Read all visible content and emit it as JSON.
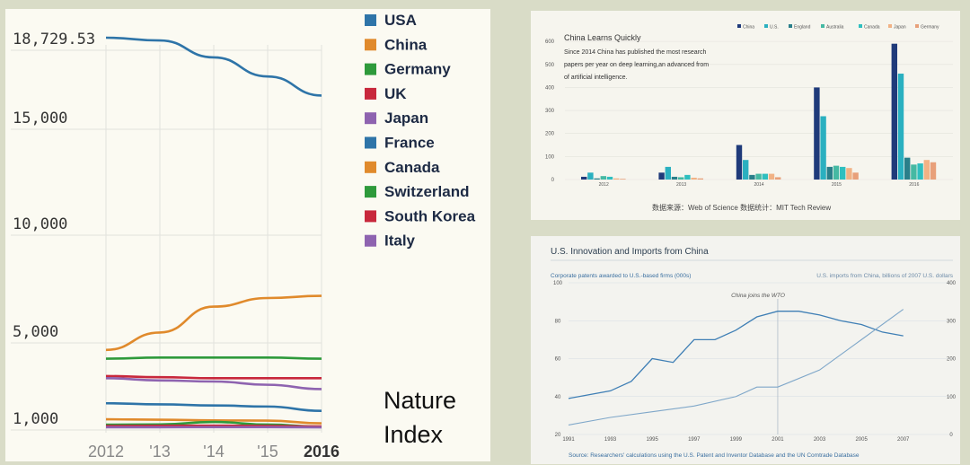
{
  "chart_data": [
    {
      "type": "line",
      "x": [
        "2012",
        "'13",
        "'14",
        "'15",
        "2016"
      ],
      "y_ticks": [
        "18,729.53",
        "15,000",
        "10,000",
        "5,000",
        "1,000"
      ],
      "y_tick_values": [
        18729.53,
        15000,
        10000,
        5000,
        1000
      ],
      "ylim": [
        0,
        19500
      ],
      "grid": true,
      "legend_position": "right",
      "series": [
        {
          "name": "USA",
          "color": "#2e74a8",
          "values": [
            18729.53,
            18600,
            17800,
            16900,
            16000
          ]
        },
        {
          "name": "China",
          "color": "#e08a2c",
          "values": [
            4100,
            4900,
            6100,
            6500,
            6600
          ]
        },
        {
          "name": "Germany",
          "color": "#2e9a3b",
          "values": [
            3700,
            3750,
            3750,
            3750,
            3700
          ]
        },
        {
          "name": "UK",
          "color": "#c8283c",
          "values": [
            2900,
            2850,
            2800,
            2800,
            2800
          ]
        },
        {
          "name": "Japan",
          "color": "#8e63b0",
          "values": [
            2800,
            2700,
            2650,
            2500,
            2300
          ]
        },
        {
          "name": "France",
          "color": "#2e74a8",
          "values": [
            1650,
            1600,
            1550,
            1500,
            1300
          ]
        },
        {
          "name": "Canada",
          "color": "#e08a2c",
          "values": [
            860,
            830,
            780,
            760,
            560
          ]
        },
        {
          "name": "Switzerland",
          "color": "#2e9a3b",
          "values": [
            460,
            480,
            660,
            470,
            310
          ]
        },
        {
          "name": "South Korea",
          "color": "#c8283c",
          "values": [
            360,
            380,
            390,
            370,
            330
          ]
        },
        {
          "name": "Italy",
          "color": "#8e63b0",
          "values": [
            270,
            270,
            280,
            280,
            260
          ]
        }
      ],
      "annotation": "Nature\nIndex"
    },
    {
      "type": "bar",
      "title": "China Learns Quickly",
      "subtitle_lines": [
        "Since 2014 China has published the most research",
        "papers per year on deep learning,an advanced from",
        "of artificial intelligence."
      ],
      "categories": [
        "2012",
        "2013",
        "2014",
        "2015",
        "2016"
      ],
      "y_ticks": [
        "0",
        "100",
        "200",
        "300",
        "400",
        "500",
        "600"
      ],
      "ylim": [
        0,
        620
      ],
      "legend_position": "top-right",
      "series": [
        {
          "name": "China",
          "color": "#1f3a7a",
          "values": [
            12,
            30,
            150,
            400,
            590
          ]
        },
        {
          "name": "U.S.",
          "color": "#2ab0c0",
          "values": [
            30,
            55,
            85,
            275,
            460
          ]
        },
        {
          "name": "England",
          "color": "#2a7f8a",
          "values": [
            5,
            12,
            20,
            55,
            95
          ]
        },
        {
          "name": "Australia",
          "color": "#45b9a3",
          "values": [
            15,
            10,
            25,
            60,
            65
          ]
        },
        {
          "name": "Canada",
          "color": "#2fbfbf",
          "values": [
            12,
            20,
            25,
            55,
            70
          ]
        },
        {
          "name": "Japan",
          "color": "#f1b285",
          "values": [
            5,
            8,
            25,
            50,
            85
          ]
        },
        {
          "name": "Germany",
          "color": "#e8a07a",
          "values": [
            3,
            5,
            10,
            30,
            75
          ]
        }
      ],
      "source": "数据来源：Web of Science 数据统计：MIT Tech Review"
    },
    {
      "type": "line",
      "title": "U.S. Innovation and Imports from China",
      "left_axis_label": "Corporate patents awarded to U.S.-based firms (000s)",
      "right_axis_label": "U.S. imports from China, billions of 2007 U.S. dollars",
      "x_ticks": [
        "1991",
        "1993",
        "1995",
        "1997",
        "1999",
        "2001",
        "2003",
        "2005",
        "2007"
      ],
      "left_ticks": [
        "20",
        "40",
        "60",
        "80",
        "100"
      ],
      "right_ticks": [
        "0",
        "100",
        "200",
        "300",
        "400"
      ],
      "left_ylim": [
        20,
        100
      ],
      "right_ylim": [
        0,
        400
      ],
      "annotation": "China joins the WTO",
      "series": [
        {
          "name": "Corporate patents awarded to U.S.-based firms (000s)",
          "axis": "left",
          "color": "#3f7fb5",
          "x": [
            1991,
            1992,
            1993,
            1994,
            1995,
            1996,
            1997,
            1998,
            1999,
            2000,
            2001,
            2002,
            2003,
            2004,
            2005,
            2006,
            2007
          ],
          "values": [
            39,
            41,
            43,
            48,
            60,
            58,
            70,
            70,
            75,
            82,
            85,
            85,
            83,
            80,
            78,
            74,
            72
          ]
        },
        {
          "name": "U.S. imports from China, billions of 2007 U.S. dollars",
          "axis": "right",
          "color": "#7fa7c9",
          "x": [
            1991,
            1993,
            1995,
            1997,
            1999,
            2000,
            2001,
            2003,
            2005,
            2007
          ],
          "values": [
            25,
            45,
            60,
            75,
            100,
            125,
            125,
            170,
            250,
            330
          ]
        }
      ],
      "source": "Source: Researchers' calculations using the U.S. Patent and Inventor Database and the UN Comtrade Database"
    }
  ]
}
